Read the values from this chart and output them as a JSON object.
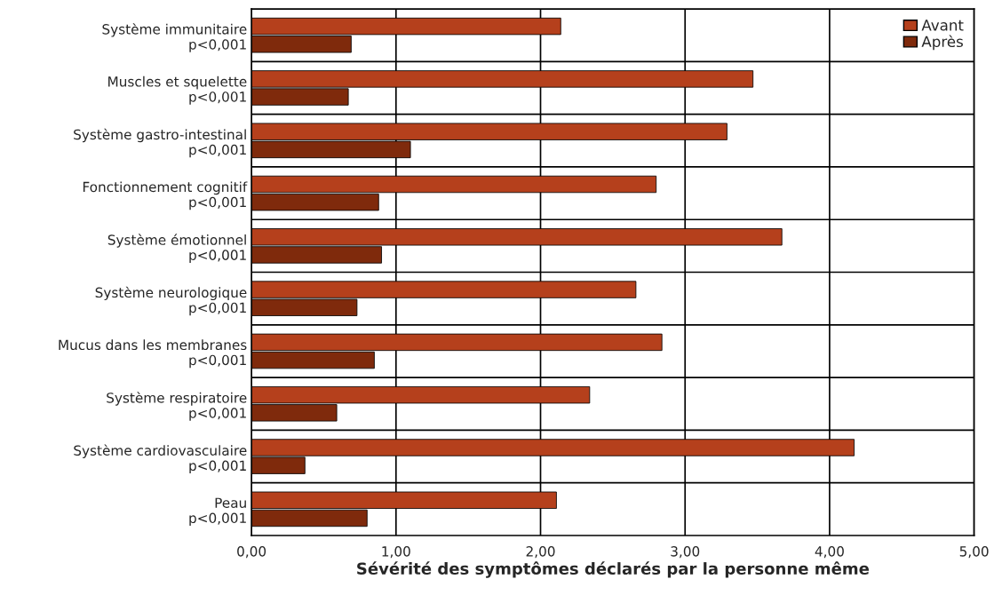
{
  "chart_data": {
    "type": "bar",
    "orientation": "horizontal",
    "xlabel": "Sévérité des symptômes déclarés par la personne même",
    "categories": [
      "Système immunitaire\np<0,001",
      "Muscles et squelette\np<0,001",
      "Système gastro-intestinal\np<0,001",
      "Fonctionnement cognitif\np<0,001",
      "Système émotionnel\np<0,001",
      "Système neurologique\np<0,001",
      "Mucus dans les membranes\np<0,001",
      "Système respiratoire\np<0,001",
      "Système cardiovasculaire\np<0,001",
      "Peau\np<0,001"
    ],
    "series": [
      {
        "name": "Avant",
        "color": "#b5401c",
        "values": [
          2.14,
          3.47,
          3.29,
          2.8,
          3.67,
          2.66,
          2.84,
          2.34,
          4.17,
          2.11
        ]
      },
      {
        "name": "Après",
        "color": "#7f2a0c",
        "values": [
          0.69,
          0.67,
          1.1,
          0.88,
          0.9,
          0.73,
          0.85,
          0.59,
          0.37,
          0.8
        ]
      }
    ],
    "xlim": [
      0,
      5
    ],
    "xticks": [
      {
        "value": 0,
        "label": "0,00"
      },
      {
        "value": 1,
        "label": "1,00"
      },
      {
        "value": 2,
        "label": "2,00"
      },
      {
        "value": 3,
        "label": "3,00"
      },
      {
        "value": 4,
        "label": "4,00"
      },
      {
        "value": 5,
        "label": "5,00"
      }
    ],
    "grid": true,
    "legend": "top right"
  }
}
